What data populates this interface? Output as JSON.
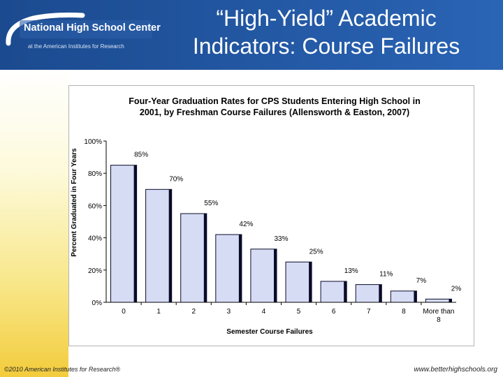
{
  "header": {
    "logo_name": "National High School Center",
    "logo_sub": "at the American Institutes for Research",
    "title_line1": "“High-Yield” Academic",
    "title_line2": "Indicators: Course Failures"
  },
  "footer": {
    "copyright": "©2010 American Institutes for Research®",
    "url": "www.betterhighschools.org"
  },
  "colors": {
    "header_blue": "#1b4a8f",
    "bar_fill": "#d7dcf5",
    "bar_dark": "#0a0a2a"
  },
  "chart_data": {
    "type": "bar",
    "title_line1": "Four-Year Graduation Rates for CPS Students Entering High School in",
    "title_line2": "2001, by Freshman Course Failures (Allensworth & Easton, 2007)",
    "xlabel": "Semester Course Failures",
    "ylabel": "Percent Graduated in Four Years",
    "categories": [
      "0",
      "1",
      "2",
      "3",
      "4",
      "5",
      "6",
      "7",
      "8",
      "More than 8"
    ],
    "values": [
      85,
      70,
      55,
      42,
      33,
      25,
      13,
      11,
      7,
      2
    ],
    "value_labels": [
      "85%",
      "70%",
      "55%",
      "42%",
      "33%",
      "25%",
      "13%",
      "11%",
      "7%",
      "2%"
    ],
    "yticks": [
      "0%",
      "20%",
      "40%",
      "60%",
      "80%",
      "100%"
    ],
    "ylim": [
      0,
      100
    ],
    "grid": false,
    "legend": "none"
  }
}
